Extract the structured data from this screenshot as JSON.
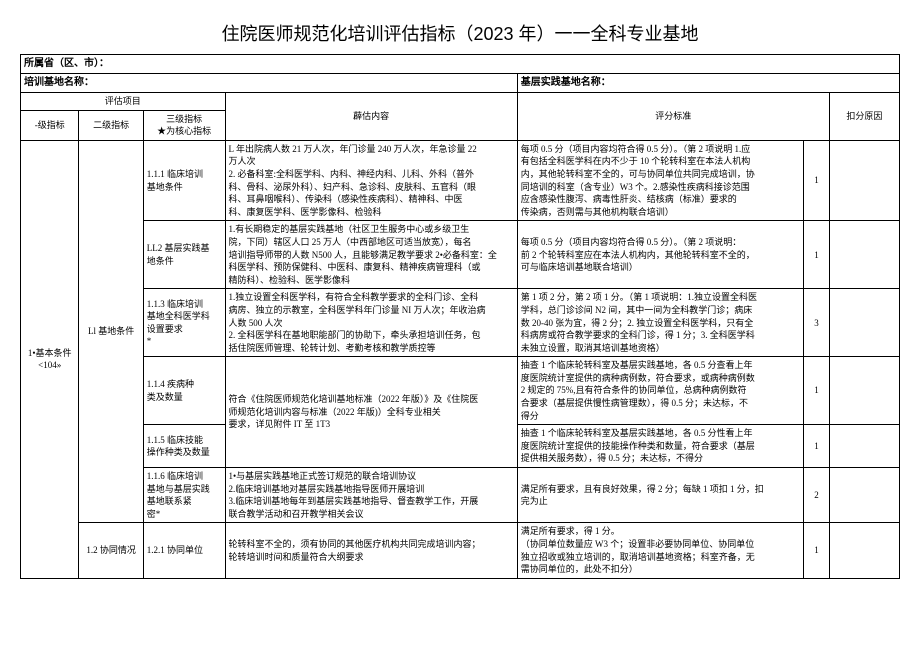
{
  "title": "住院医师规范化培训评估指标（2023 年）一一全科专业基地",
  "header": {
    "province_label": "所属省（区、市）：",
    "base_label": "培训基地名称：",
    "practice_base_label": "基层实践基地名称："
  },
  "thead": {
    "eval_item": "评估项目",
    "eval_content": "薜估内容",
    "eval_std": "评分标准",
    "deduct_reason": "扣分原因",
    "lv1": "-级指标",
    "lv2": "二级指标",
    "lv3": "三级指标\n★为核心指标"
  },
  "lv1": "1•基本条件\n<104»",
  "lv2_1": "Ll 基地条件",
  "lv2_2": "1.2 协同情况",
  "rows": [
    {
      "lv3": "1.1.1 临床培训\n基地条件",
      "content": "L 年出院病人数 21 万人次，年门诊量 240 万人次，年急诊量 22\n万人次\n2. 必备科室:全科医学科、内科、神经内科、儿科、外科（普外\n科、骨科、泌尿外科）、妇产科、急诊科、皮肤科、五官科（眼\n科、耳鼻咽喉科）、传染科（感染性疾病科）、精神科、中医\n科、康复医学科、医学影像科、检验科",
      "std": "每项 0.5 分（项目内容均符合得 0.5 分）。（第 2 项说明 1.应\n有包括全科医学科在内不少于 10 个轮转科室在本法人机构\n内，其他轮转科室不全的，可与协同单位共同完成培训，协\n同培训的科室（含专业）W3 个。2.感染性疾病科接诊范围\n应含感染性腹泻、病毒性肝炎、结核病（标准）要求的\n传染病，否则需与其他机构联合培训）",
      "score": "1"
    },
    {
      "lv3": "LL2 基层实践基\n地条件",
      "content": "1.有长期稳定的基层实践基地（社区卫生服务中心或乡级卫生\n院，下同）辖区人口 25 万人（中西部地区可适当放宽），每名\n培训指导师带的人数 N500 人，且能够满足教学要求 2•必备科室：全\n科医学科、预防保健科、中医科、康复科、精神疾病管理科（或\n精防科）、检验科、医学影像科",
      "std": "每项 0.5 分（项目内容均符合得 0.5 分）。（第 2 项说明：\n前 2 个轮转科室应在本法人机构内，其他轮转科室不全的，\n可与临床培训基地联合培训）",
      "score": "1"
    },
    {
      "lv3": "1.1.3 临床培训\n基地全科医学科\n设置要求\n*",
      "content": "1.独立设置全科医学科，有符合全科教学要求的全科门诊、全科\n病房、独立的示教室，全科医学科年门诊量 NI 万人次；年收治病\n人数 500 人次\n2. 全科医学科在基地职能部门的协助下，牵头承担培训任务，包\n括住院医师管理、轮转计划、考勤考核和教学质控等",
      "std": "第 1 项 2 分，第 2 项 1 分。（第 1 项说明：1.独立设置全科医\n学科，总门诊诊间 N2 间，其中一间为全科教学门诊；病床\n数 20-40 张为宜，得 2 分；2. 独立设置全科医学科，只有全\n科病房或符合教学要求的全科门诊，得 1 分；3. 全科医学科\n未独立设置，取消其培训基地资格）",
      "score": "3"
    },
    {
      "lv3": "1.1.4 疾病种\n类及数量",
      "content": "符合《住院医师规范化培训基地标准（2022 年版）》及《住院医\n师规范化培训内容与标准（2022 年版)）全科专业相关\n要求，详见附件 IT 至 1T3",
      "std": "抽查 1 个临床轮转科室及基层实践基地，各 0.5 分查看上年\n度医院统计室提供的病种病例数，符合要求，或病种病例数\n2 规定的 75%,且有符合条件的协同单位，总病种病例数符\n合要求（基层提供慢性病管理数），得 0.5 分；未达标，不\n得分",
      "score": "1",
      "rowspan_content": 2
    },
    {
      "lv3": "1.1.5 临床技能\n操作种类及数量",
      "std": "抽查 1 个临床轮转科室及基层实践基地，各 0.5 分性看上年\n度医院统计室提供的技能操作种类和数量，符合要求（基层\n提供相关服务数），得 0.5 分；未达标，不得分",
      "score": "1"
    },
    {
      "lv3": "1.1.6 临床培训\n基地与基层实践\n基地联系紧\n密*",
      "content": "1•与基层实践基地正式签订规范的联合培训协议\n2.临床培训基地对基层实践基地指导医师开展培训\n3.临床培训基地每年到基层实践基地指导、督查教学工作，开展\n联合教学活动和召开教学相关会议",
      "std": "满足所有要求，且有良好效果，得 2 分；每缺 1 项扣 1 分，扣\n完为止",
      "score": "2"
    },
    {
      "lv3": "1.2.1 协同单位",
      "content": "轮转科室不全的，须有协同的其他医疗机构共同完成培训内容；\n轮转培训时间和质量符合大纲要求",
      "std": "满足所有要求，得 1 分。\n（协同单位数量应 W3 个；设置非必要协同单位、协同单位\n独立招收或独立培训的，取消培训基地资格；科室齐备，无\n需协同单位的，此处不扣分）",
      "score": "1"
    }
  ]
}
